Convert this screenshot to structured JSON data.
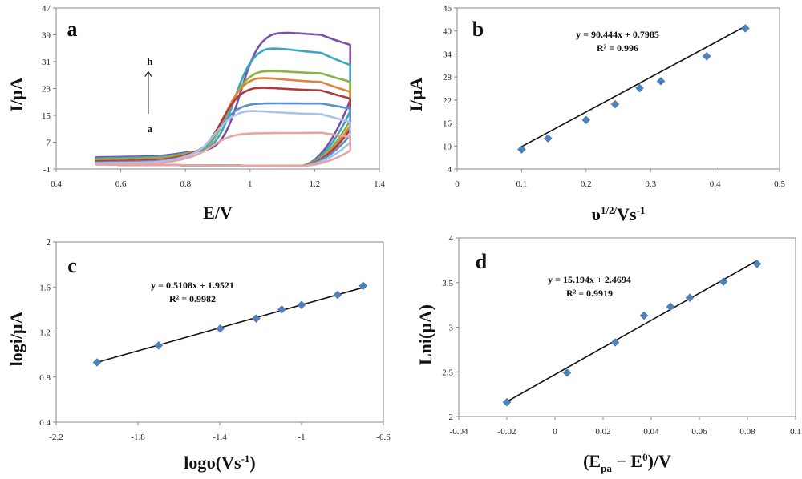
{
  "chart_data": [
    {
      "type": "line",
      "panel_label": "a",
      "xlabel": "E/V",
      "ylabel": "I/μA",
      "xlim": [
        0.4,
        1.4
      ],
      "ylim": [
        -1,
        47
      ],
      "xticks": [
        "0.4",
        "0.6",
        "0.8",
        "1",
        "1.2",
        "1.4"
      ],
      "yticks": [
        "-1",
        "7",
        "15",
        "23",
        "31",
        "39",
        "47"
      ],
      "arrow_top_label": "h",
      "arrow_bottom_label": "a",
      "series": [
        {
          "color": "#7b4fa3",
          "ipa": 39.5,
          "epa": 1.07,
          "end": 36,
          "base": 2.5
        },
        {
          "color": "#3aa6c4",
          "ipa": 35,
          "epa": 1.05,
          "end": 30,
          "base": 2.2
        },
        {
          "color": "#86b540",
          "ipa": 28,
          "epa": 1.03,
          "end": 25,
          "base": 1.9
        },
        {
          "color": "#e0833a",
          "ipa": 26,
          "epa": 1.02,
          "end": 22,
          "base": 1.6
        },
        {
          "color": "#b33a3a",
          "ipa": 23,
          "epa": 1.01,
          "end": 20,
          "base": 1.3
        },
        {
          "color": "#5a8fcf",
          "ipa": 18,
          "epa": 1.0,
          "end": 17,
          "base": 1.0
        },
        {
          "color": "#a9c3e8",
          "ipa": 16,
          "epa": 0.99,
          "end": 13,
          "base": 0.7
        },
        {
          "color": "#e9a3a3",
          "ipa": 9,
          "epa": 0.98,
          "end": 8.5,
          "base": 0.3
        }
      ]
    },
    {
      "type": "scatter",
      "panel_label": "b",
      "xlabel": "υ1/2/Vs-1",
      "ylabel": "I/μA",
      "xlim": [
        0,
        0.5
      ],
      "ylim": [
        4,
        46
      ],
      "xticks": [
        "0",
        "0.1",
        "0.2",
        "0.3",
        "0.4",
        "0.5"
      ],
      "yticks": [
        "4",
        "10",
        "16",
        "22",
        "28",
        "34",
        "40",
        "46"
      ],
      "x": [
        0.1,
        0.141,
        0.2,
        0.245,
        0.283,
        0.316,
        0.387,
        0.447
      ],
      "y": [
        9.1,
        12.0,
        16.8,
        20.9,
        25.1,
        26.9,
        33.4,
        40.7
      ],
      "trendline": {
        "slope": 90.444,
        "intercept": 0.7985,
        "x_range": [
          0.1,
          0.447
        ]
      },
      "equation": "y = 90.444x + 0.7985",
      "r2": "R² = 0.996"
    },
    {
      "type": "scatter",
      "panel_label": "c",
      "xlabel": "logυ(Vs-1)",
      "ylabel": "logi/μA",
      "xlim": [
        -2.2,
        -0.6
      ],
      "ylim": [
        0.4,
        2
      ],
      "xticks": [
        "-2.2",
        "-1.8",
        "-1.4",
        "-1",
        "-0.6"
      ],
      "yticks": [
        "0.4",
        "0.8",
        "1.2",
        "1.6",
        "2"
      ],
      "x": [
        -2.0,
        -1.699,
        -1.398,
        -1.222,
        -1.097,
        -1.0,
        -0.824,
        -0.699
      ],
      "y": [
        0.93,
        1.08,
        1.23,
        1.32,
        1.4,
        1.44,
        1.53,
        1.61
      ],
      "trendline": {
        "slope": 0.5108,
        "intercept": 1.9521,
        "x_range": [
          -2.0,
          -0.699
        ]
      },
      "equation": "y = 0.5108x + 1.9521",
      "r2": "R² = 0.9982"
    },
    {
      "type": "scatter",
      "panel_label": "d",
      "xlabel": "(Epa − E0)/V",
      "ylabel": "Lni(μA)",
      "xlim": [
        -0.04,
        0.1
      ],
      "ylim": [
        2,
        4
      ],
      "xticks": [
        "-0.04",
        "-0.02",
        "0",
        "0.02",
        "0.04",
        "0.06",
        "0.08",
        "0.1"
      ],
      "yticks": [
        "2",
        "2.5",
        "3",
        "3.5",
        "4"
      ],
      "x": [
        -0.02,
        0.005,
        0.025,
        0.037,
        0.048,
        0.056,
        0.07,
        0.084
      ],
      "y": [
        2.16,
        2.49,
        2.83,
        3.13,
        3.23,
        3.33,
        3.51,
        3.71
      ],
      "trendline": {
        "slope": 15.194,
        "intercept": 2.4694,
        "x_range": [
          -0.02,
          0.084
        ]
      },
      "equation": "y = 15.194x + 2.4694",
      "r2": "R² = 0.9919"
    }
  ]
}
